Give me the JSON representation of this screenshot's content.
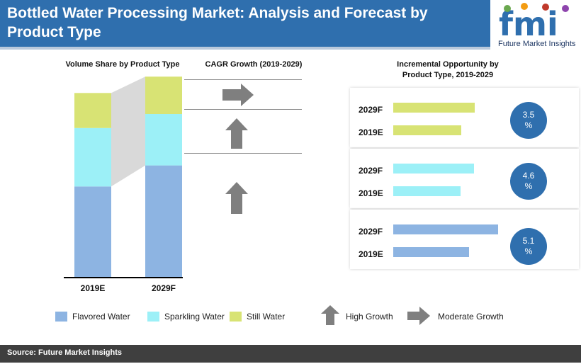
{
  "header": {
    "title": "Bottled Water Processing Market: Analysis and Forecast by Product Type"
  },
  "logo": {
    "mark": "fmi",
    "subtitle": "Future Market Insights"
  },
  "colors": {
    "flavored": "#8db4e2",
    "sparkling": "#9cf0f7",
    "still": "#d8e374",
    "accent": "#2f6fae",
    "arrow": "#7f7f7f"
  },
  "volume_section": {
    "title": "Volume Share by Product Type"
  },
  "cagr_section": {
    "title": "CAGR Growth (2019-2029)",
    "arrows": [
      "moderate-growth",
      "high-growth",
      "high-growth"
    ]
  },
  "incremental_section": {
    "title": "Incremental Opportunity by Product Type, 2019-2029"
  },
  "legend": {
    "items": [
      "Flavored Water",
      "Sparkling Water",
      "Still Water"
    ],
    "high_growth": "High Growth",
    "moderate_growth": "Moderate Growth"
  },
  "footer": {
    "source": "Source: Future Market Insights"
  },
  "chart_data": [
    {
      "type": "bar",
      "stacked": true,
      "title": "Volume Share by Product Type",
      "categories": [
        "2019E",
        "2029F"
      ],
      "series": [
        {
          "name": "Flavored Water",
          "values": [
            39,
            48
          ]
        },
        {
          "name": "Sparkling Water",
          "values": [
            25,
            22
          ]
        },
        {
          "name": "Still Water",
          "values": [
            15,
            16
          ]
        }
      ]
    },
    {
      "type": "bar",
      "orientation": "horizontal",
      "title": "Incremental Opportunity by Product Type, 2019-2029",
      "groups": [
        {
          "categories": [
            "2029F",
            "2019E"
          ],
          "values": [
            115,
            96
          ],
          "cagr": "3.5 %"
        },
        {
          "categories": [
            "2029F",
            "2019E"
          ],
          "values": [
            114,
            95
          ],
          "cagr": "4.6 %"
        },
        {
          "categories": [
            "2029F",
            "2019E"
          ],
          "values": [
            148,
            107
          ],
          "cagr": "5.1 %"
        }
      ]
    }
  ]
}
